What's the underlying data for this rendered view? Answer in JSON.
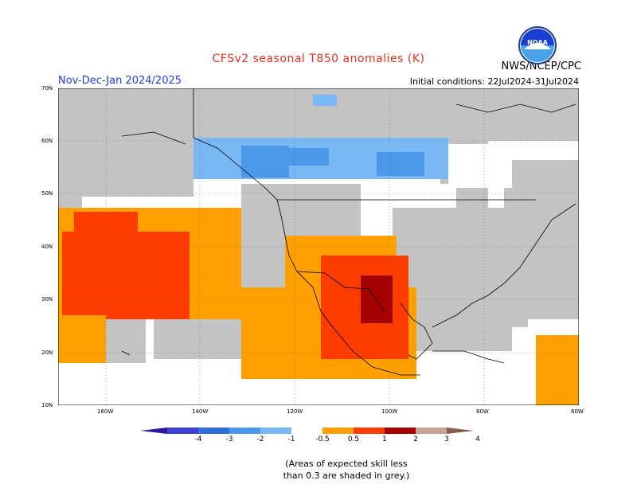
{
  "title": "CFSv2 seasonal T850 anomalies (K)",
  "org": "NWS/NCEP/CPC",
  "period": "Nov-Dec-Jan 2024/2025",
  "init": "Initial conditions: 22Jul2024-31Jul2024",
  "logo_text": "NOAA",
  "lat_labels": [
    "70N",
    "60N",
    "50N",
    "40N",
    "30N",
    "20N",
    "10N"
  ],
  "lon_labels": [
    "160W",
    "140W",
    "120W",
    "100W",
    "80W",
    "60W"
  ],
  "legend_ticks": [
    "-4",
    "-3",
    "-2",
    "-1",
    "-0.5",
    "0.5",
    "1",
    "2",
    "3",
    "4"
  ],
  "legend_colors": [
    "#2d17a0",
    "#3c3fcf",
    "#2f6fd8",
    "#4b97e8",
    "#7ab8f5",
    "#ffffff",
    "#ffa000",
    "#ff3c00",
    "#a50000",
    "#c8a296",
    "#8a5a4a"
  ],
  "note_line1": "(Areas of expected skill less",
  "note_line2": "than 0.3 are shaded in grey.)",
  "colors": {
    "grey": "#c3c3c3",
    "orange": "#ffa000",
    "red": "#ff3c00",
    "darkred": "#a50000",
    "lightblue": "#7ab8f5",
    "blue": "#4b97e8"
  }
}
